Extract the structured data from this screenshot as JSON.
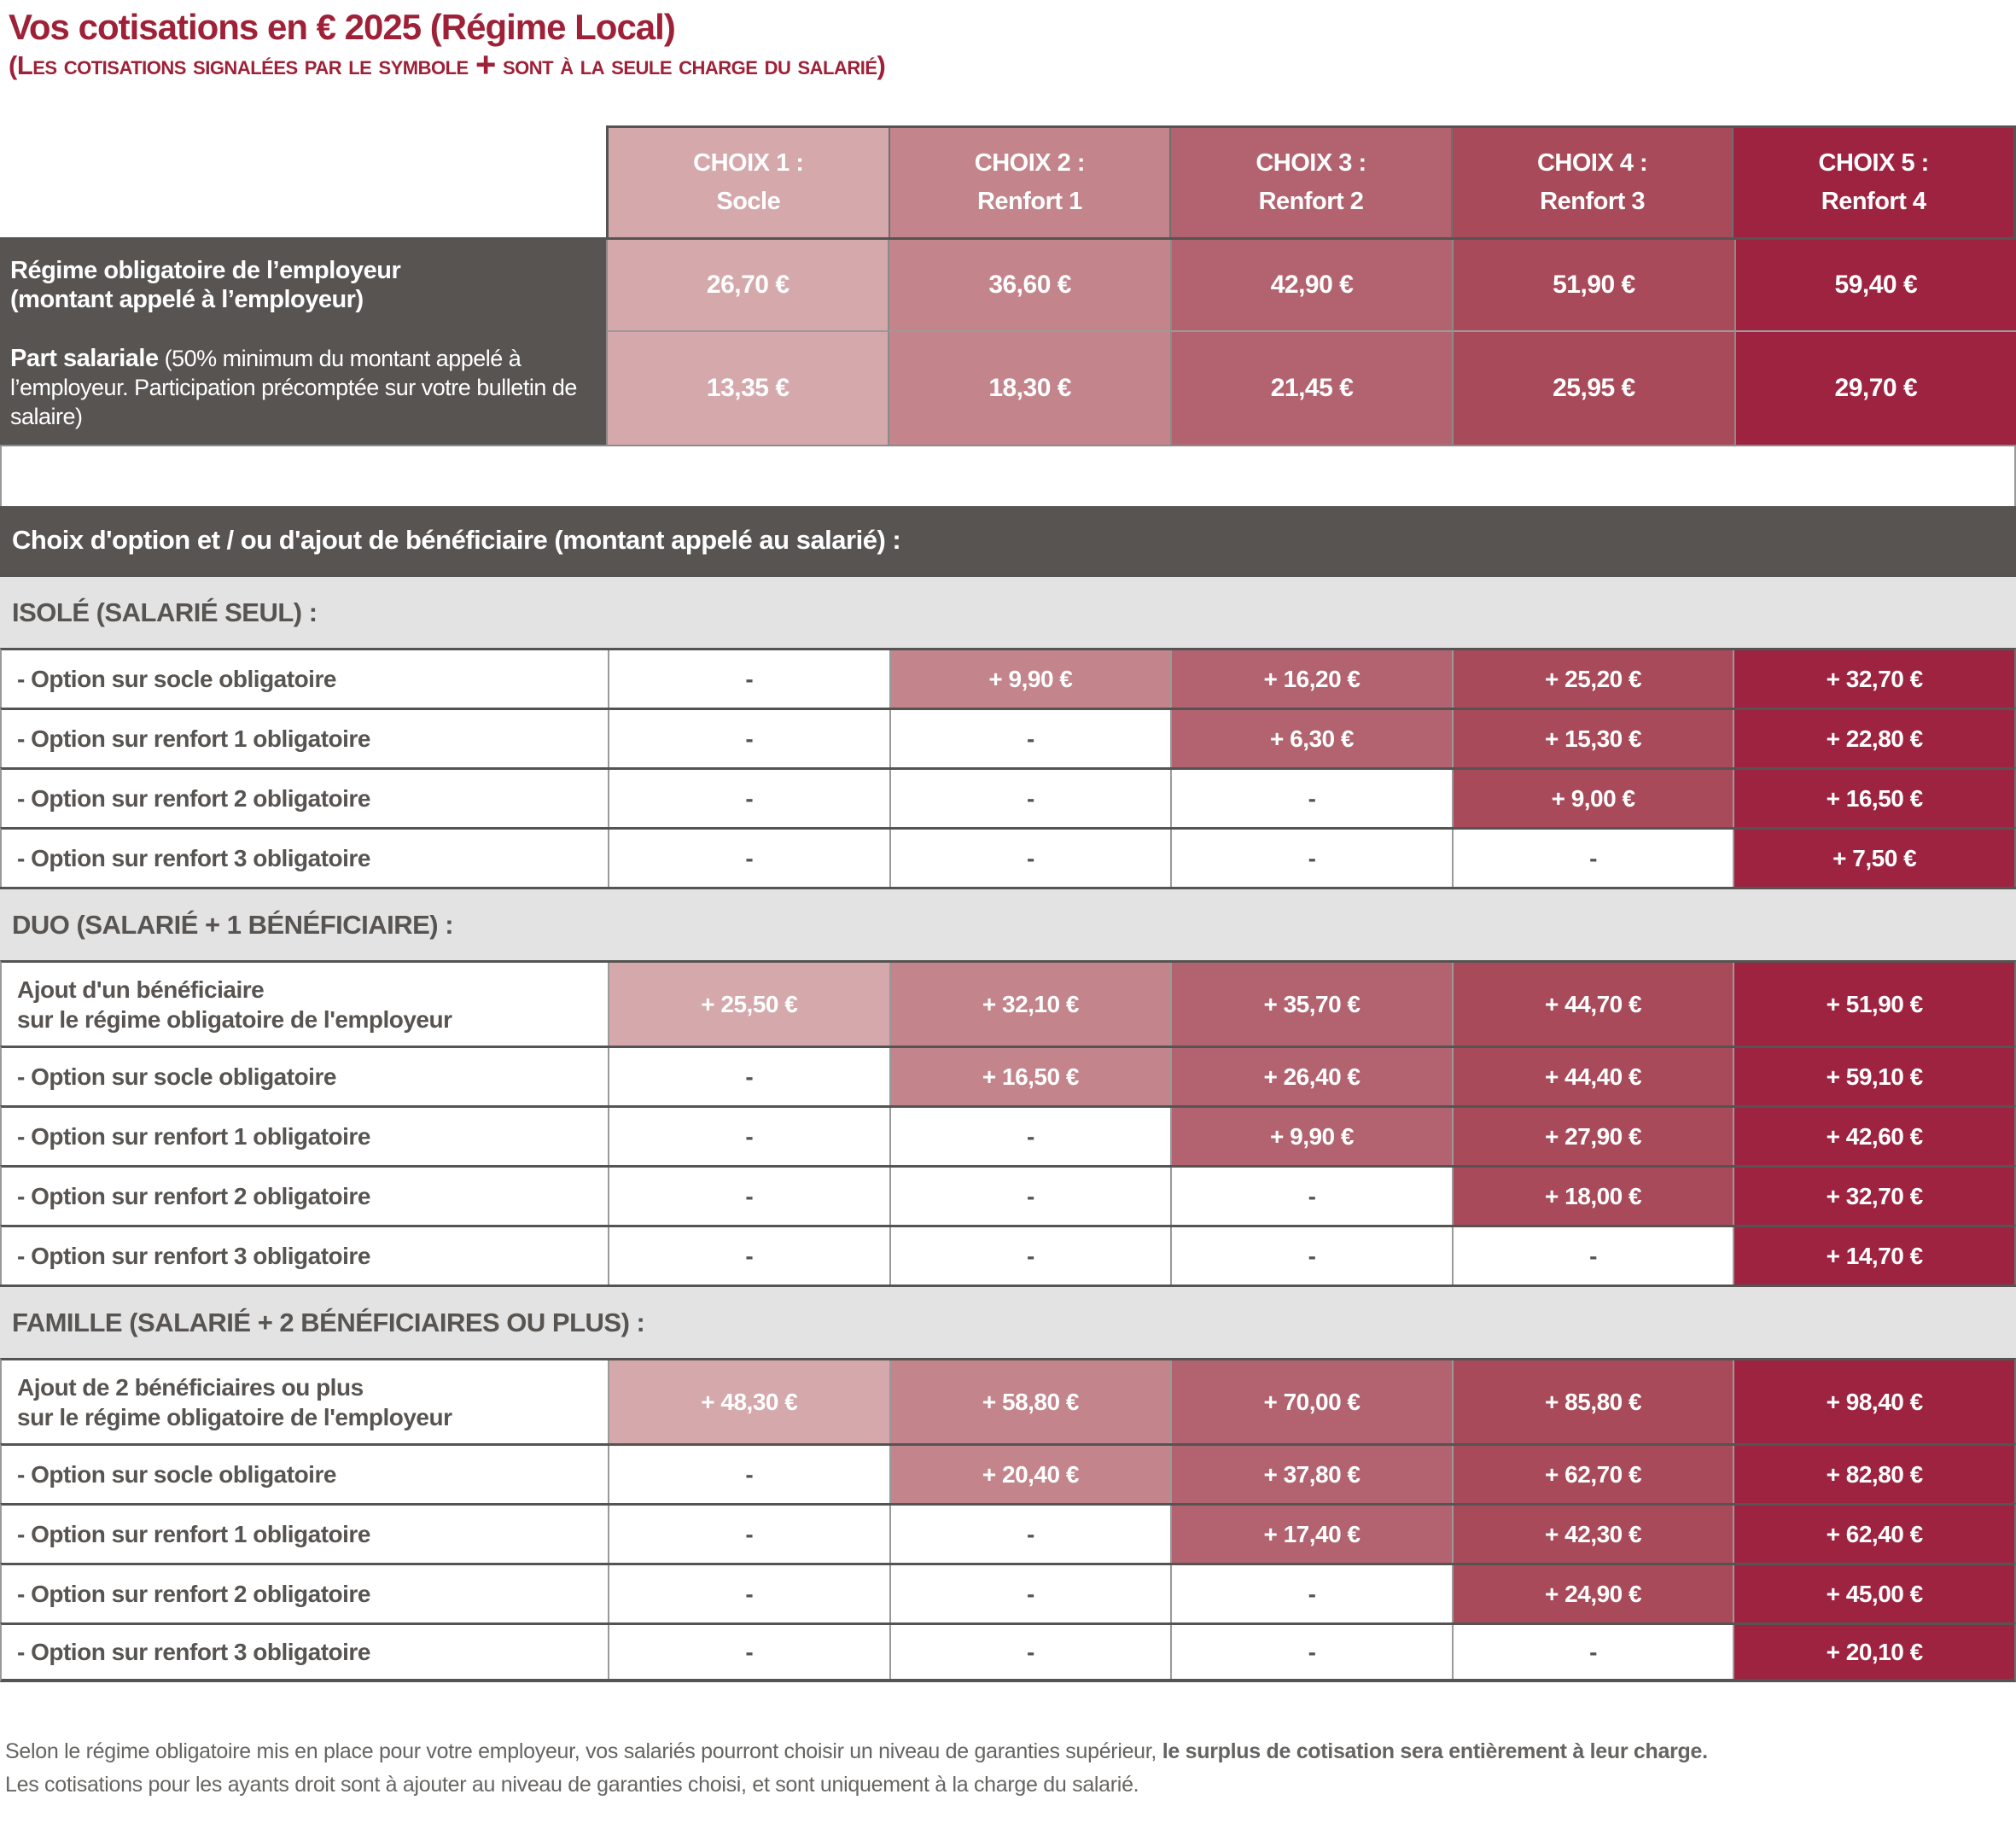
{
  "title": "Vos cotisations en € 2025 (Régime Local)",
  "subtitle": {
    "prefix": "(Les cotisations signalées par le symbole ",
    "plus": "+",
    "suffix": " sont à la seule charge du salarié)"
  },
  "colors": {
    "title_red": "#9e2137",
    "dark_gray": "#575452",
    "band_gray": "#e3e3e3",
    "choix1": "#d5a8ac",
    "choix2": "#c3848b",
    "choix3": "#b2636f",
    "choix4": "#a84a59",
    "choix5": "#9e2340"
  },
  "columns": [
    {
      "label_line1": "CHOIX 1 :",
      "label_line2": "Socle",
      "color": "#d5a8ac"
    },
    {
      "label_line1": "CHOIX 2 :",
      "label_line2": "Renfort 1",
      "color": "#c3848b"
    },
    {
      "label_line1": "CHOIX 3 :",
      "label_line2": "Renfort 2",
      "color": "#b2636f"
    },
    {
      "label_line1": "CHOIX 4 :",
      "label_line2": "Renfort 3",
      "color": "#a84a59"
    },
    {
      "label_line1": "CHOIX 5 :",
      "label_line2": "Renfort 4",
      "color": "#9e2340"
    }
  ],
  "employer_rows": [
    {
      "label_main": "Régime obligatoire de l’employeur",
      "label_sub": "(montant appelé à l’employeur)",
      "values": [
        "26,70 €",
        "36,60 €",
        "42,90 €",
        "51,90 €",
        "59,40 €"
      ]
    },
    {
      "label_main": "Part salariale",
      "label_sub": "(50% minimum du montant appelé à l’employeur. Participation précomptée sur votre bulletin de salaire)",
      "values": [
        "13,35 €",
        "18,30 €",
        "21,45 €",
        "25,95 €",
        "29,70 €"
      ]
    }
  ],
  "choice_header": "Choix d'option et / ou d'ajout de bénéficiaire (montant appelé au salarié) :",
  "sections": [
    {
      "title": "ISOLÉ (SALARIÉ SEUL) :",
      "rows": [
        {
          "label": "- Option sur socle obligatoire",
          "values": [
            "-",
            "+ 9,90 €",
            "+ 16,20 €",
            "+ 25,20 €",
            "+ 32,70 €"
          ]
        },
        {
          "label": "- Option sur renfort 1 obligatoire",
          "values": [
            "-",
            "-",
            "+ 6,30 €",
            "+ 15,30 €",
            "+ 22,80 €"
          ]
        },
        {
          "label": "- Option sur renfort 2 obligatoire",
          "values": [
            "-",
            "-",
            "-",
            "+ 9,00 €",
            "+ 16,50 €"
          ]
        },
        {
          "label": "- Option sur renfort 3 obligatoire",
          "values": [
            "-",
            "-",
            "-",
            "-",
            "+ 7,50 €"
          ]
        }
      ]
    },
    {
      "title": "DUO (SALARIÉ + 1 BÉNÉFICIAIRE) :",
      "rows": [
        {
          "label_lines": [
            "Ajout d'un bénéficiaire",
            "sur le régime obligatoire de l'employeur"
          ],
          "values": [
            "+ 25,50 €",
            "+ 32,10 €",
            "+ 35,70 €",
            "+ 44,70 €",
            "+ 51,90 €"
          ]
        },
        {
          "label": "- Option sur socle obligatoire",
          "values": [
            "-",
            "+ 16,50 €",
            "+ 26,40 €",
            "+ 44,40 €",
            "+ 59,10 €"
          ]
        },
        {
          "label": "- Option sur renfort 1 obligatoire",
          "values": [
            "-",
            "-",
            "+ 9,90 €",
            "+ 27,90 €",
            "+ 42,60 €"
          ]
        },
        {
          "label": "- Option sur renfort 2 obligatoire",
          "values": [
            "-",
            "-",
            "-",
            "+ 18,00 €",
            "+ 32,70 €"
          ]
        },
        {
          "label": "- Option sur renfort 3 obligatoire",
          "values": [
            "-",
            "-",
            "-",
            "-",
            "+ 14,70 €"
          ]
        }
      ]
    },
    {
      "title": "FAMILLE (SALARIÉ + 2 BÉNÉFICIAIRES OU PLUS) :",
      "rows": [
        {
          "label_lines": [
            "Ajout de 2 bénéficiaires ou plus",
            "sur le régime obligatoire de l'employeur"
          ],
          "values": [
            "+ 48,30 €",
            "+ 58,80 €",
            "+ 70,00 €",
            "+ 85,80 €",
            "+ 98,40 €"
          ]
        },
        {
          "label": "- Option sur socle obligatoire",
          "values": [
            "-",
            "+ 20,40 €",
            "+ 37,80 €",
            "+ 62,70 €",
            "+ 82,80 €"
          ]
        },
        {
          "label": "- Option sur renfort 1 obligatoire",
          "values": [
            "-",
            "-",
            "+ 17,40 €",
            "+ 42,30 €",
            "+ 62,40 €"
          ]
        },
        {
          "label": "- Option sur renfort 2 obligatoire",
          "values": [
            "-",
            "-",
            "-",
            "+ 24,90 €",
            "+ 45,00 €"
          ]
        },
        {
          "label": "- Option sur renfort 3 obligatoire",
          "values": [
            "-",
            "-",
            "-",
            "-",
            "+ 20,10 €"
          ]
        }
      ]
    }
  ],
  "footer": {
    "line1_normal": "Selon le régime obligatoire mis en place pour votre employeur, vos salariés pourront choisir un niveau de garanties supérieur, ",
    "line1_bold": "le surplus de cotisation sera entièrement à leur charge.",
    "line2": "Les cotisations pour les ayants droit sont à ajouter au niveau de garanties choisi, et sont uniquement à la charge du salarié."
  }
}
